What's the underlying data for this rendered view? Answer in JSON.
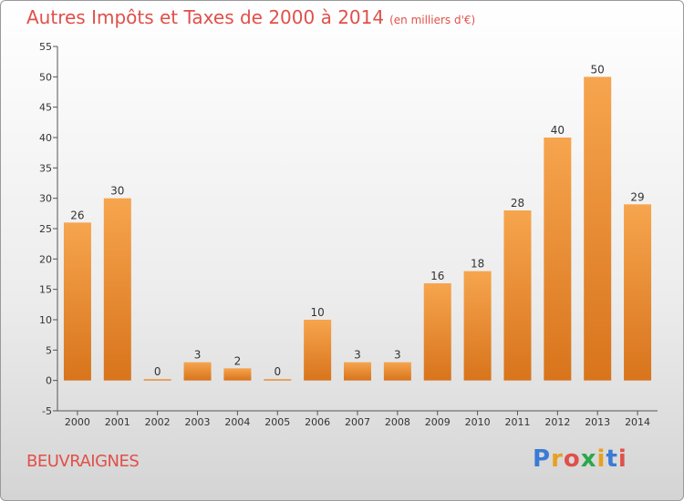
{
  "title": "Autres Impôts et Taxes de 2000 à 2014",
  "title_unit": "(en milliers d'€)",
  "commune": "BEUVRAIGNES",
  "logo": {
    "text": "Proxiti",
    "letter_colors": [
      "#3a7bd5",
      "#e8a020",
      "#e0504a",
      "#2aa84a",
      "#e8a020",
      "#3a7bd5",
      "#e0504a"
    ]
  },
  "colors": {
    "bar_light": "#f6a54e",
    "bar_dark": "#d8741c",
    "title": "#e0504a"
  },
  "chart_data": {
    "type": "bar",
    "title": "Autres Impôts et Taxes de 2000 à 2014",
    "subtitle": "(en milliers d'€)",
    "categories": [
      "2000",
      "2001",
      "2002",
      "2003",
      "2004",
      "2005",
      "2006",
      "2007",
      "2008",
      "2009",
      "2010",
      "2011",
      "2012",
      "2013",
      "2014"
    ],
    "values": [
      26,
      30,
      0,
      3,
      2,
      0,
      10,
      3,
      3,
      16,
      18,
      28,
      40,
      50,
      29
    ],
    "ylim": [
      -5,
      55
    ],
    "yticks": [
      -5,
      0,
      5,
      10,
      15,
      20,
      25,
      30,
      35,
      40,
      45,
      50,
      55
    ],
    "xlabel": "",
    "ylabel": "",
    "grid": false
  }
}
